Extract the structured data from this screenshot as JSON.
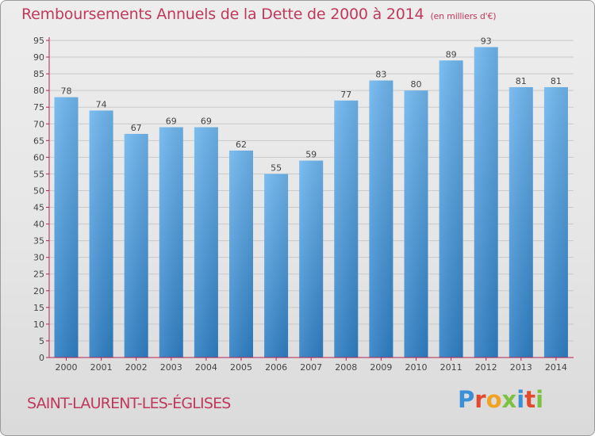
{
  "colors": {
    "title": "#c0395c",
    "bar_top": "#6fb6ee",
    "bar_bottom": "#2f7fc4",
    "axis": "#b8224f",
    "grid": "#c9c9c9",
    "text": "#444444"
  },
  "header": {
    "title": "Remboursements Annuels de la Dette de 2000 à 2014",
    "unit": "(en milliers d'€)"
  },
  "footer": {
    "commune": "SAINT-LAURENT-LES-ÉGLISES",
    "logo_letters": [
      "P",
      "r",
      "o",
      "x",
      "i",
      "t",
      "i"
    ],
    "logo_colors": [
      "#3a8fd6",
      "#e24a2f",
      "#f0a323",
      "#7cc242",
      "#3a8fd6",
      "#e24a2f",
      "#7cc242"
    ]
  },
  "chart_data": {
    "type": "bar",
    "title": "Remboursements Annuels de la Dette de 2000 à 2014",
    "ylabel": "en milliers d'€",
    "xlabel": "",
    "categories": [
      "2000",
      "2001",
      "2002",
      "2003",
      "2004",
      "2005",
      "2006",
      "2007",
      "2008",
      "2009",
      "2010",
      "2011",
      "2012",
      "2013",
      "2014"
    ],
    "values": [
      78,
      74,
      67,
      69,
      69,
      62,
      55,
      59,
      77,
      83,
      80,
      89,
      93,
      81,
      81
    ],
    "ylim": [
      0,
      95
    ],
    "yticks": [
      0,
      5,
      10,
      15,
      20,
      25,
      30,
      35,
      40,
      45,
      50,
      55,
      60,
      65,
      70,
      75,
      80,
      85,
      90,
      95
    ],
    "grid": true
  }
}
